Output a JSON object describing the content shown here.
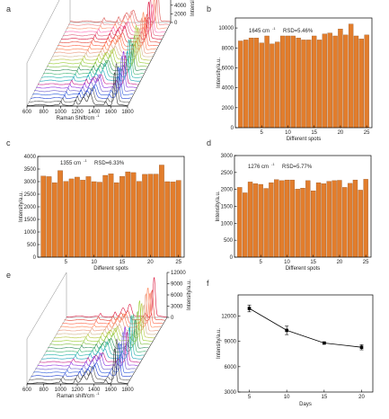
{
  "chart_data": [
    {
      "id": "a",
      "type": "line",
      "panel_label": "a",
      "xlabel": "Raman Shift/cm",
      "xlabel_sup": "-1",
      "x_ticks": [
        "600",
        "800",
        "1000",
        "1200",
        "1400",
        "1600",
        "1800"
      ],
      "z_ticks": [
        "0",
        "2000",
        "4000",
        "6000",
        "8000",
        "10000"
      ],
      "zlabel": "Intensity/a.u.",
      "n_spectra": 25,
      "peaks_cm": [
        1276,
        1355,
        1645
      ],
      "peak_heights": [
        2200,
        3200,
        9000
      ],
      "colors": [
        "#333333",
        "#555555",
        "#1f3fd1",
        "#2d5bdb",
        "#6a5acd",
        "#8a2be2",
        "#c71585",
        "#17a2b8",
        "#20b2aa",
        "#3cb371",
        "#2e8b57",
        "#7fbf3f",
        "#9acd32",
        "#b5c43a",
        "#d2b48c",
        "#e9967a",
        "#ff7f50",
        "#ff6347",
        "#e34234",
        "#dc143c",
        "#e0607e",
        "#ff69b4",
        "#ff8c69",
        "#f08080",
        "#d9534f"
      ]
    },
    {
      "id": "b",
      "type": "bar",
      "panel_label": "b",
      "annotation_peak": "1645 cm",
      "annotation_sup": "-1",
      "annotation_rsd": "RSD=5.46%",
      "categories": [
        1,
        2,
        3,
        4,
        5,
        6,
        7,
        8,
        9,
        10,
        11,
        12,
        13,
        14,
        15,
        16,
        17,
        18,
        19,
        20,
        21,
        22,
        23,
        24,
        25
      ],
      "values": [
        8700,
        8800,
        9000,
        9000,
        8500,
        9200,
        8400,
        8600,
        9200,
        9200,
        9200,
        9000,
        8800,
        8800,
        9200,
        8800,
        9400,
        9500,
        9200,
        9900,
        9300,
        10400,
        9200,
        8900,
        9300
      ],
      "x_ticks": [
        "5",
        "10",
        "15",
        "20",
        "25"
      ],
      "y_ticks": [
        "0",
        "2000",
        "4000",
        "6000",
        "8000",
        "10000"
      ],
      "ylim": [
        0,
        11000
      ],
      "xlabel": "Different spots",
      "ylabel": "Intensity/a.u.",
      "bar_color": "#e27d2c"
    },
    {
      "id": "c",
      "type": "bar",
      "panel_label": "c",
      "annotation_peak": "1355 cm",
      "annotation_sup": "-1",
      "annotation_rsd": "RSD=6.33%",
      "categories": [
        1,
        2,
        3,
        4,
        5,
        6,
        7,
        8,
        9,
        10,
        11,
        12,
        13,
        14,
        15,
        16,
        17,
        18,
        19,
        20,
        21,
        22,
        23,
        24,
        25
      ],
      "values": [
        3220,
        3200,
        2960,
        3440,
        3010,
        3110,
        3180,
        3060,
        3200,
        3000,
        2980,
        3250,
        3310,
        2960,
        3210,
        3390,
        3360,
        3010,
        3290,
        3300,
        3300,
        3660,
        3000,
        2990,
        3050
      ],
      "x_ticks": [
        "5",
        "10",
        "15",
        "20",
        "25"
      ],
      "y_ticks": [
        "0",
        "500",
        "1000",
        "1500",
        "2000",
        "2500",
        "3000",
        "3500",
        "4000"
      ],
      "ylim": [
        0,
        4000
      ],
      "xlabel": "Different spots",
      "ylabel": "Intensity/a.u.",
      "bar_color": "#e27d2c"
    },
    {
      "id": "d",
      "type": "bar",
      "panel_label": "d",
      "annotation_peak": "1276 cm",
      "annotation_sup": "-1",
      "annotation_rsd": "RSD=5.77%",
      "categories": [
        1,
        2,
        3,
        4,
        5,
        6,
        7,
        8,
        9,
        10,
        11,
        12,
        13,
        14,
        15,
        16,
        17,
        18,
        19,
        20,
        21,
        22,
        23,
        24,
        25
      ],
      "values": [
        2060,
        1900,
        2220,
        2170,
        2150,
        2030,
        2200,
        2290,
        2260,
        2280,
        2280,
        2010,
        2040,
        2260,
        1960,
        2200,
        2170,
        2240,
        2260,
        2270,
        2060,
        2180,
        2280,
        1980,
        2300
      ],
      "x_ticks": [
        "5",
        "10",
        "15",
        "20",
        "25"
      ],
      "y_ticks": [
        "0",
        "500",
        "1000",
        "1500",
        "2000",
        "2500",
        "3000"
      ],
      "ylim": [
        0,
        3000
      ],
      "xlabel": "Different spots",
      "ylabel": "Intensity/a.u.",
      "bar_color": "#e27d2c"
    },
    {
      "id": "e",
      "type": "line",
      "panel_label": "e",
      "xlabel": "Raman shift/cm",
      "xlabel_sup": "-1",
      "x_ticks": [
        "600",
        "800",
        "1000",
        "1200",
        "1400",
        "1600",
        "1800"
      ],
      "z_ticks": [
        "0",
        "3000",
        "6000",
        "9000",
        "12000"
      ],
      "zlabel": "Intensity/a.u.",
      "n_spectra": 20,
      "peaks_cm": [
        1276,
        1355,
        1645
      ],
      "peak_heights": [
        2400,
        3500,
        11000
      ],
      "colors": [
        "#333333",
        "#555555",
        "#1f3fd1",
        "#2d5bdb",
        "#6a5acd",
        "#8a2be2",
        "#c71585",
        "#17a2b8",
        "#20b2aa",
        "#3cb371",
        "#2e8b57",
        "#7fbf3f",
        "#9acd32",
        "#b5c43a",
        "#d2b48c",
        "#e9967a",
        "#ff7f50",
        "#ff6347",
        "#e34234",
        "#dc143c"
      ]
    },
    {
      "id": "f",
      "type": "line",
      "panel_label": "f",
      "x": [
        5,
        10,
        15,
        20
      ],
      "y": [
        12900,
        10300,
        8800,
        8300
      ],
      "yerr": [
        400,
        500,
        100,
        300
      ],
      "x_ticks": [
        "5",
        "10",
        "15",
        "20"
      ],
      "y_ticks": [
        "3000",
        "6000",
        "9000",
        "12000"
      ],
      "xlim": [
        3.5,
        21.5
      ],
      "ylim": [
        3000,
        14500
      ],
      "xlabel": "Days",
      "ylabel": "Intensity/a.u.",
      "line_color": "#000000"
    }
  ]
}
